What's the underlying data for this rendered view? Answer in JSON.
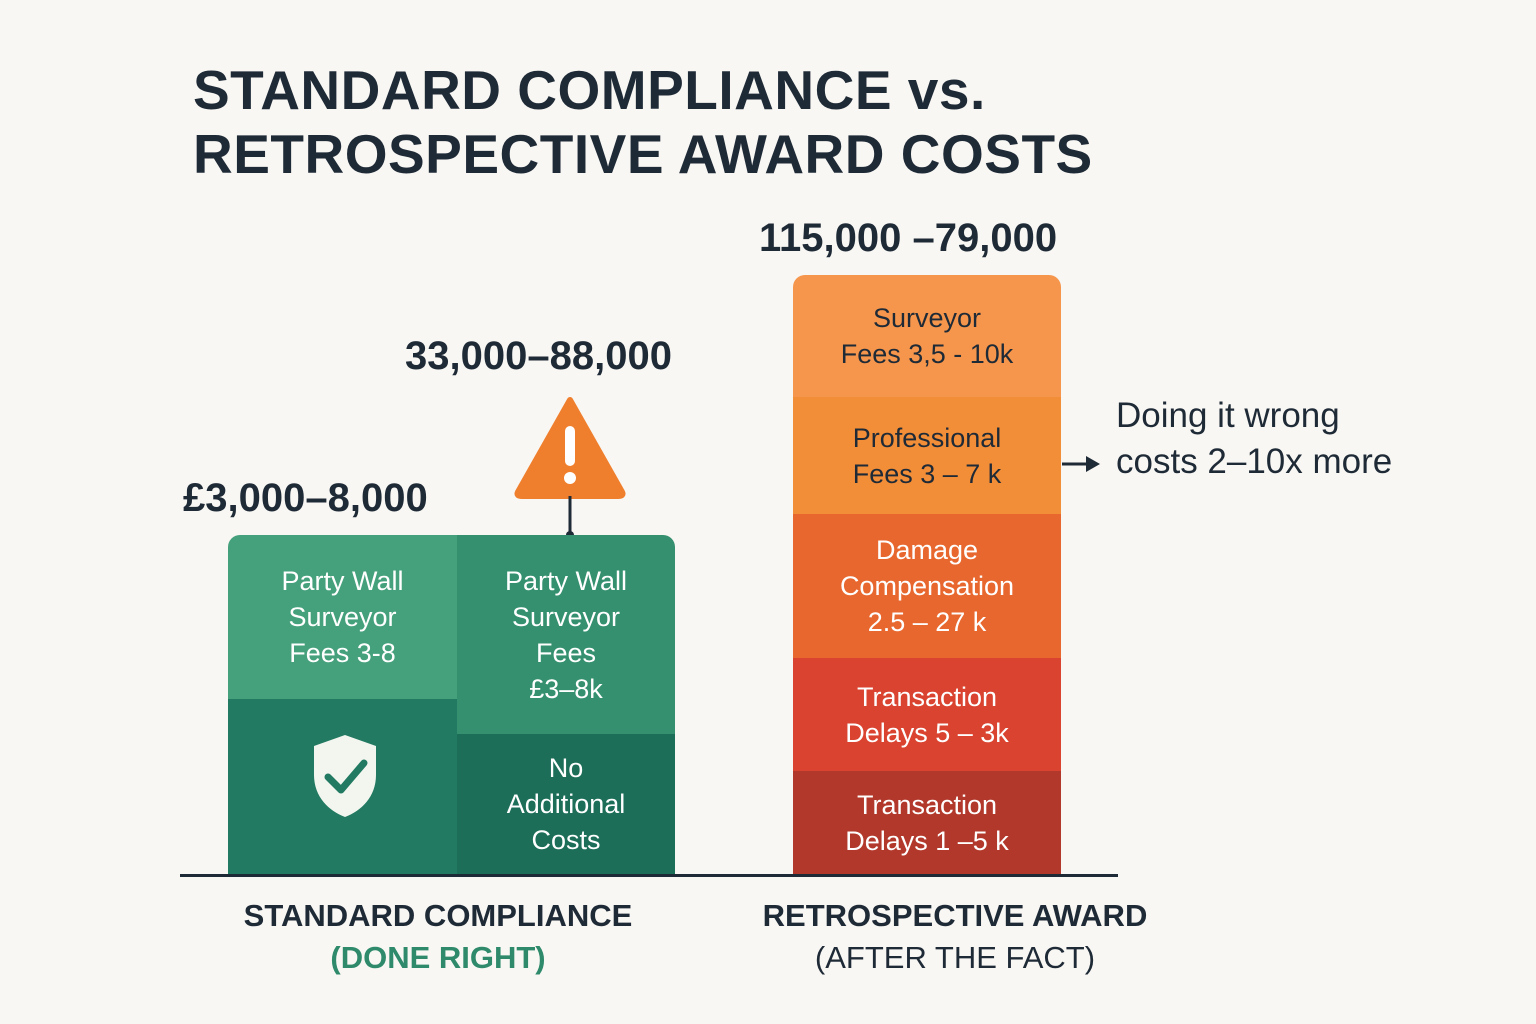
{
  "title": {
    "line1": "STANDARD COMPLIANCE vs.",
    "line2": "RETROSPECTIVE AWARD COSTS"
  },
  "colors": {
    "green_light": "#45a07c",
    "green_mid": "#34906f",
    "green_dark": "#217a61",
    "green_darker": "#1c6e58",
    "orange_light": "#f5964c",
    "orange_mid": "#f28d38",
    "orange_deep": "#e8672e",
    "red": "#d9432f",
    "red_dark": "#b2382b",
    "warning": "#f07f2d",
    "text": "#1f2a37"
  },
  "icons": {
    "warning": "warning-triangle-icon",
    "shield": "shield-check-icon",
    "arrow": "arrow-right-icon"
  },
  "chart_data": {
    "type": "bar",
    "categories": [
      "STANDARD COMPLIANCE (DONE RIGHT)",
      "RETROSPECTIVE AWARD (AFTER THE FACT)"
    ],
    "value_labels": [
      "£3,000–8,000",
      "33,000–88,000",
      "115,000 –79,000"
    ],
    "category_labels": [
      {
        "main": "STANDARD COMPLIANCE",
        "sub": "(DONE RIGHT)"
      },
      {
        "main": "RETROSPECTIVE AWARD",
        "sub": "(AFTER THE FACT)"
      }
    ],
    "segments": {
      "standard_left": [
        {
          "label": "Party Wall\nSurveyor\nFees 3-8"
        },
        {
          "label": ""
        }
      ],
      "standard_right": [
        {
          "label": "Party Wall\nSurveyor\nFees\n£3–8k"
        },
        {
          "label": "No\nAdditional\nCosts"
        }
      ],
      "retrospective": [
        {
          "label": "Surveyor\nFees 3,5 - 10k"
        },
        {
          "label": "Professional\nFees 3 – 7 k"
        },
        {
          "label": "Damage\nCompensation\n2.5 – 27 k"
        },
        {
          "label": "Transaction\nDelays 5 – 3k"
        },
        {
          "label": "Transaction\nDelays 1 –5 k"
        }
      ]
    },
    "annotation": {
      "line1": "Doing it wrong",
      "line2": "costs 2–10x more"
    }
  }
}
